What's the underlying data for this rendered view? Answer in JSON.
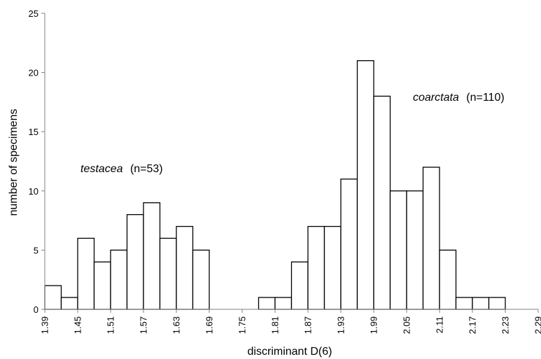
{
  "chart_data": {
    "type": "bar",
    "title": "",
    "xlabel": "discriminant D(6)",
    "ylabel": "number of specimens",
    "ylim": [
      0,
      25
    ],
    "yticks": [
      0,
      5,
      10,
      15,
      20,
      25
    ],
    "xticks": [
      "1.39",
      "1.45",
      "1.51",
      "1.57",
      "1.63",
      "1.69",
      "1.75",
      "1.81",
      "1.87",
      "1.93",
      "1.99",
      "2.05",
      "2.11",
      "2.17",
      "2.23",
      "2.29"
    ],
    "xlim": [
      1.39,
      2.29
    ],
    "bin_width": 0.03,
    "grid": false,
    "bins": [
      {
        "x": 1.405,
        "value": 2
      },
      {
        "x": 1.435,
        "value": 1
      },
      {
        "x": 1.465,
        "value": 6
      },
      {
        "x": 1.495,
        "value": 4
      },
      {
        "x": 1.525,
        "value": 5
      },
      {
        "x": 1.555,
        "value": 8
      },
      {
        "x": 1.585,
        "value": 9
      },
      {
        "x": 1.615,
        "value": 6
      },
      {
        "x": 1.645,
        "value": 7
      },
      {
        "x": 1.675,
        "value": 5
      },
      {
        "x": 1.795,
        "value": 1
      },
      {
        "x": 1.825,
        "value": 1
      },
      {
        "x": 1.855,
        "value": 4
      },
      {
        "x": 1.885,
        "value": 7
      },
      {
        "x": 1.915,
        "value": 7
      },
      {
        "x": 1.945,
        "value": 11
      },
      {
        "x": 1.975,
        "value": 21
      },
      {
        "x": 2.005,
        "value": 18
      },
      {
        "x": 2.035,
        "value": 10
      },
      {
        "x": 2.065,
        "value": 10
      },
      {
        "x": 2.095,
        "value": 12
      },
      {
        "x": 2.125,
        "value": 5
      },
      {
        "x": 2.155,
        "value": 1
      },
      {
        "x": 2.185,
        "value": 1
      },
      {
        "x": 2.215,
        "value": 1
      }
    ],
    "annotations": [
      {
        "species": "testacea",
        "count": "(n=53)"
      },
      {
        "species": "coarctata",
        "count": "(n=110)"
      }
    ]
  }
}
